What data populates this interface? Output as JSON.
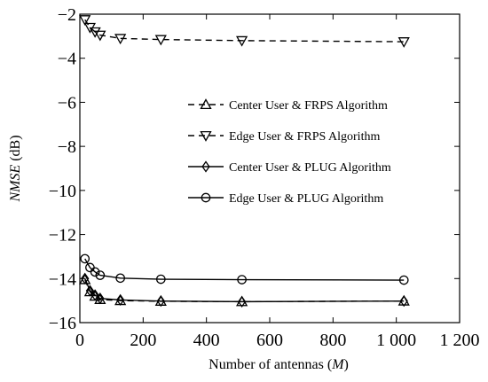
{
  "chart_data": {
    "type": "line",
    "title": "",
    "xlabel": "Number of antennas (M)",
    "xlabel_main": "Number of  antennas (",
    "xlabel_var": "M",
    "xlabel_end": ")",
    "ylabel": "NMSE (dB)",
    "ylabel_var": "NMSE",
    "ylabel_unit": " (dB)",
    "xlim": [
      0,
      1200
    ],
    "ylim": [
      -16,
      -2
    ],
    "xticks": [
      0,
      200,
      400,
      600,
      800,
      1000,
      1200
    ],
    "xtick_labels": [
      "0",
      "200",
      "400",
      "600",
      "800",
      "1 000",
      "1 200"
    ],
    "yticks": [
      -16,
      -14,
      -12,
      -10,
      -8,
      -6,
      -4,
      -2
    ],
    "ytick_labels": [
      "−16",
      "−14",
      "−12",
      "−10",
      "−8",
      "−6",
      "−4",
      "−2"
    ],
    "grid": false,
    "legend_position": "right-middle",
    "series": [
      {
        "name": "Center User & FRPS Algorithm",
        "line": "dashed",
        "marker": "triangle-up",
        "x": [
          16,
          32,
          48,
          64,
          128,
          256,
          512,
          1024
        ],
        "y": [
          -14.05,
          -14.6,
          -14.8,
          -14.95,
          -15.0,
          -15.03,
          -15.05,
          -15.02
        ]
      },
      {
        "name": "Edge User & FRPS Algorithm",
        "line": "dashed",
        "marker": "triangle-down",
        "x": [
          16,
          32,
          48,
          64,
          128,
          256,
          512,
          1024
        ],
        "y": [
          -2.25,
          -2.6,
          -2.8,
          -2.95,
          -3.1,
          -3.15,
          -3.2,
          -3.25
        ]
      },
      {
        "name": "Center User & PLUG Algorithm",
        "line": "solid",
        "marker": "diamond",
        "x": [
          16,
          32,
          48,
          64,
          128,
          256,
          512,
          1024
        ],
        "y": [
          -14.0,
          -14.55,
          -14.75,
          -14.9,
          -14.97,
          -15.02,
          -15.05,
          -15.02
        ]
      },
      {
        "name": "Edge User & PLUG Algorithm",
        "line": "solid",
        "marker": "circle",
        "x": [
          16,
          32,
          48,
          64,
          128,
          256,
          512,
          1024
        ],
        "y": [
          -13.1,
          -13.5,
          -13.7,
          -13.85,
          -13.98,
          -14.03,
          -14.05,
          -14.07
        ]
      }
    ]
  }
}
